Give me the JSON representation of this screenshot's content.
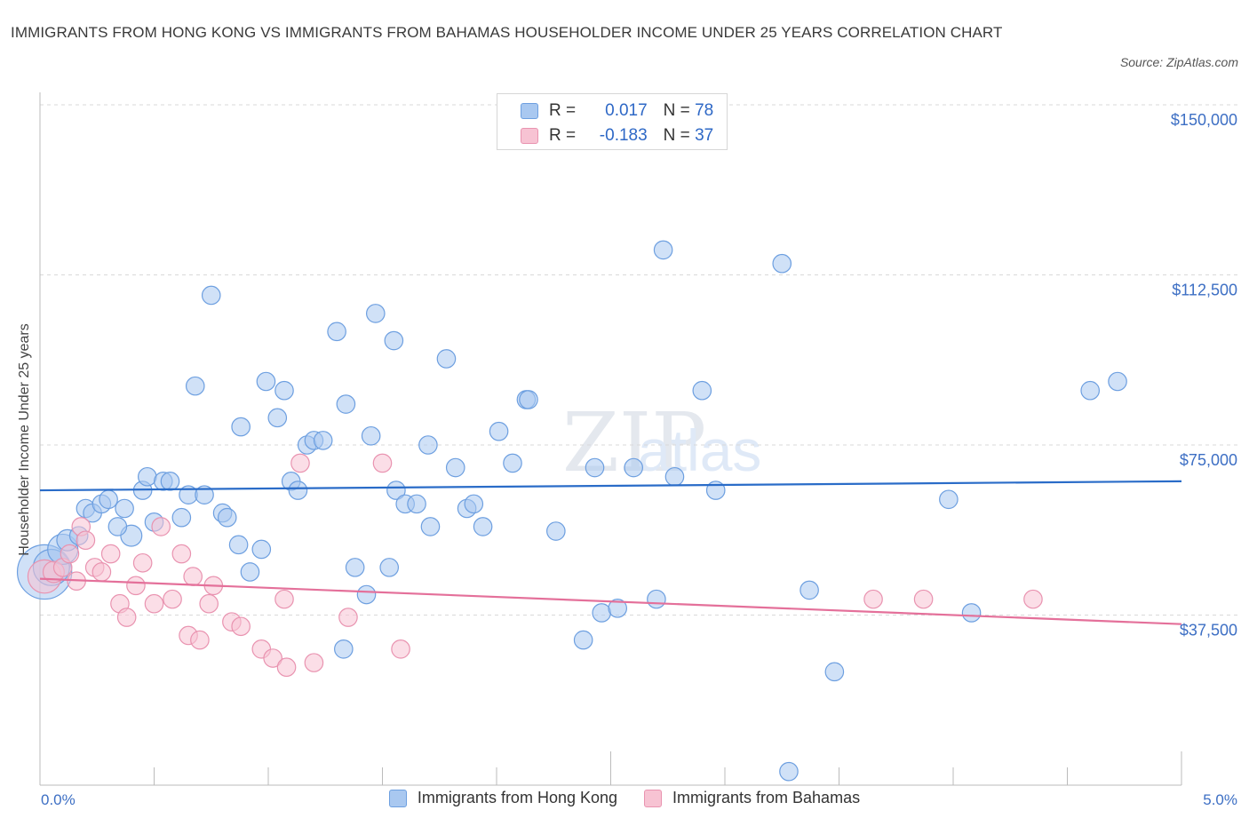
{
  "title": "IMMIGRANTS FROM HONG KONG VS IMMIGRANTS FROM BAHAMAS HOUSEHOLDER INCOME UNDER 25 YEARS CORRELATION CHART",
  "source": "Source: ZipAtlas.com",
  "watermark": {
    "zip": "ZIP",
    "atlas": "atlas"
  },
  "legend": {
    "rows": [
      {
        "r_label": "R =",
        "r_value": "0.017",
        "n_label": "N =",
        "n_value": "78",
        "color": "#a9c8f0",
        "border": "#6d9fe0"
      },
      {
        "r_label": "R =",
        "r_value": "-0.183",
        "n_label": "N =",
        "n_value": "37",
        "color": "#f7c3d3",
        "border": "#e993b0"
      }
    ]
  },
  "bottom_legend": [
    "Immigrants from Hong Kong",
    "Immigrants from Bahamas"
  ],
  "chart_data": {
    "type": "scatter",
    "title": "IMMIGRANTS FROM HONG KONG VS IMMIGRANTS FROM BAHAMAS HOUSEHOLDER INCOME UNDER 25 YEARS CORRELATION CHART",
    "xlabel": "",
    "ylabel": "Householder Income Under 25 years",
    "xlim": [
      0.0,
      5.0
    ],
    "ylim": [
      0,
      150000
    ],
    "x_tick_labels": [
      "0.0%",
      "5.0%"
    ],
    "y_tick_values": [
      37500,
      75000,
      112500,
      150000
    ],
    "y_tick_labels": [
      "$37,500",
      "$75,000",
      "$112,500",
      "$150,000"
    ],
    "grid": "horizontal dashed",
    "legend_position": "top-center",
    "series": [
      {
        "name": "Immigrants from Hong Kong",
        "color": "#a9c8f0",
        "stroke": "#6d9fe0",
        "trend_color": "#2a6cc8",
        "trend": {
          "x": [
            0.0,
            5.0
          ],
          "y": [
            65000,
            67000
          ]
        },
        "points": [
          [
            0.02,
            47000,
            3.6
          ],
          [
            0.05,
            48000,
            2.4
          ],
          [
            0.1,
            52000,
            2
          ],
          [
            0.12,
            54000,
            1.4
          ],
          [
            0.17,
            55000,
            1.2
          ],
          [
            0.2,
            61000,
            1.2
          ],
          [
            0.23,
            60000,
            1.2
          ],
          [
            0.27,
            62000,
            1.2
          ],
          [
            0.3,
            63000,
            1.2
          ],
          [
            0.34,
            57000,
            1.2
          ],
          [
            0.37,
            61000,
            1.2
          ],
          [
            0.4,
            55000,
            1.4
          ],
          [
            0.45,
            65000,
            1.2
          ],
          [
            0.47,
            68000,
            1.2
          ],
          [
            0.5,
            58000,
            1.2
          ],
          [
            0.54,
            67000,
            1.2
          ],
          [
            0.57,
            67000,
            1.2
          ],
          [
            0.62,
            59000,
            1.2
          ],
          [
            0.65,
            64000,
            1.2
          ],
          [
            0.68,
            88000,
            1.2
          ],
          [
            0.72,
            64000,
            1.2
          ],
          [
            0.75,
            108000,
            1.2
          ],
          [
            0.8,
            60000,
            1.2
          ],
          [
            0.82,
            59000,
            1.2
          ],
          [
            0.87,
            53000,
            1.2
          ],
          [
            0.88,
            79000,
            1.2
          ],
          [
            0.92,
            47000,
            1.2
          ],
          [
            0.97,
            52000,
            1.2
          ],
          [
            0.99,
            89000,
            1.2
          ],
          [
            1.04,
            81000,
            1.2
          ],
          [
            1.07,
            87000,
            1.2
          ],
          [
            1.1,
            67000,
            1.2
          ],
          [
            1.13,
            65000,
            1.2
          ],
          [
            1.17,
            75000,
            1.2
          ],
          [
            1.2,
            76000,
            1.2
          ],
          [
            1.24,
            76000,
            1.2
          ],
          [
            1.3,
            100000,
            1.2
          ],
          [
            1.33,
            30000,
            1.2
          ],
          [
            1.34,
            84000,
            1.2
          ],
          [
            1.38,
            48000,
            1.2
          ],
          [
            1.43,
            42000,
            1.2
          ],
          [
            1.45,
            77000,
            1.2
          ],
          [
            1.47,
            104000,
            1.2
          ],
          [
            1.53,
            48000,
            1.2
          ],
          [
            1.55,
            98000,
            1.2
          ],
          [
            1.56,
            65000,
            1.2
          ],
          [
            1.6,
            62000,
            1.2
          ],
          [
            1.65,
            62000,
            1.2
          ],
          [
            1.7,
            75000,
            1.2
          ],
          [
            1.71,
            57000,
            1.2
          ],
          [
            1.78,
            94000,
            1.2
          ],
          [
            1.82,
            70000,
            1.2
          ],
          [
            1.87,
            61000,
            1.2
          ],
          [
            1.9,
            62000,
            1.2
          ],
          [
            1.94,
            57000,
            1.2
          ],
          [
            2.01,
            78000,
            1.2
          ],
          [
            2.07,
            71000,
            1.2
          ],
          [
            2.13,
            85000,
            1.2
          ],
          [
            2.14,
            85000,
            1.2
          ],
          [
            2.26,
            56000,
            1.2
          ],
          [
            2.38,
            32000,
            1.2
          ],
          [
            2.43,
            70000,
            1.2
          ],
          [
            2.46,
            38000,
            1.2
          ],
          [
            2.53,
            39000,
            1.2
          ],
          [
            2.6,
            70000,
            1.2
          ],
          [
            2.7,
            41000,
            1.2
          ],
          [
            2.73,
            118000,
            1.2
          ],
          [
            2.78,
            68000,
            1.2
          ],
          [
            2.9,
            87000,
            1.2
          ],
          [
            2.96,
            65000,
            1.2
          ],
          [
            3.25,
            115000,
            1.2
          ],
          [
            3.28,
            3000,
            1.2
          ],
          [
            3.37,
            43000,
            1.2
          ],
          [
            3.48,
            25000,
            1.2
          ],
          [
            3.98,
            63000,
            1.2
          ],
          [
            4.08,
            38000,
            1.2
          ],
          [
            4.6,
            87000,
            1.2
          ],
          [
            4.72,
            89000,
            1.2
          ]
        ]
      },
      {
        "name": "Immigrants from Bahamas",
        "color": "#f7c3d3",
        "stroke": "#e993b0",
        "trend_color": "#e4709a",
        "trend": {
          "x": [
            0.0,
            5.0
          ],
          "y": [
            45500,
            35500
          ]
        },
        "points": [
          [
            0.02,
            46000,
            2.2
          ],
          [
            0.06,
            47000,
            1.4
          ],
          [
            0.1,
            48000,
            1.2
          ],
          [
            0.13,
            51000,
            1.2
          ],
          [
            0.18,
            57000,
            1.2
          ],
          [
            0.2,
            54000,
            1.2
          ],
          [
            0.24,
            48000,
            1.2
          ],
          [
            0.27,
            47000,
            1.2
          ],
          [
            0.31,
            51000,
            1.2
          ],
          [
            0.35,
            40000,
            1.2
          ],
          [
            0.38,
            37000,
            1.2
          ],
          [
            0.42,
            44000,
            1.2
          ],
          [
            0.45,
            49000,
            1.2
          ],
          [
            0.5,
            40000,
            1.2
          ],
          [
            0.53,
            57000,
            1.2
          ],
          [
            0.58,
            41000,
            1.2
          ],
          [
            0.62,
            51000,
            1.2
          ],
          [
            0.65,
            33000,
            1.2
          ],
          [
            0.67,
            46000,
            1.2
          ],
          [
            0.7,
            32000,
            1.2
          ],
          [
            0.74,
            40000,
            1.2
          ],
          [
            0.76,
            44000,
            1.2
          ],
          [
            0.84,
            36000,
            1.2
          ],
          [
            0.88,
            35000,
            1.2
          ],
          [
            0.97,
            30000,
            1.2
          ],
          [
            1.02,
            28000,
            1.2
          ],
          [
            1.07,
            41000,
            1.2
          ],
          [
            1.08,
            26000,
            1.2
          ],
          [
            1.14,
            71000,
            1.2
          ],
          [
            1.2,
            27000,
            1.2
          ],
          [
            1.35,
            37000,
            1.2
          ],
          [
            1.5,
            71000,
            1.2
          ],
          [
            1.58,
            30000,
            1.2
          ],
          [
            3.65,
            41000,
            1.2
          ],
          [
            3.87,
            41000,
            1.2
          ],
          [
            4.35,
            41000,
            1.2
          ],
          [
            0.16,
            45000,
            1.2
          ]
        ]
      }
    ]
  }
}
